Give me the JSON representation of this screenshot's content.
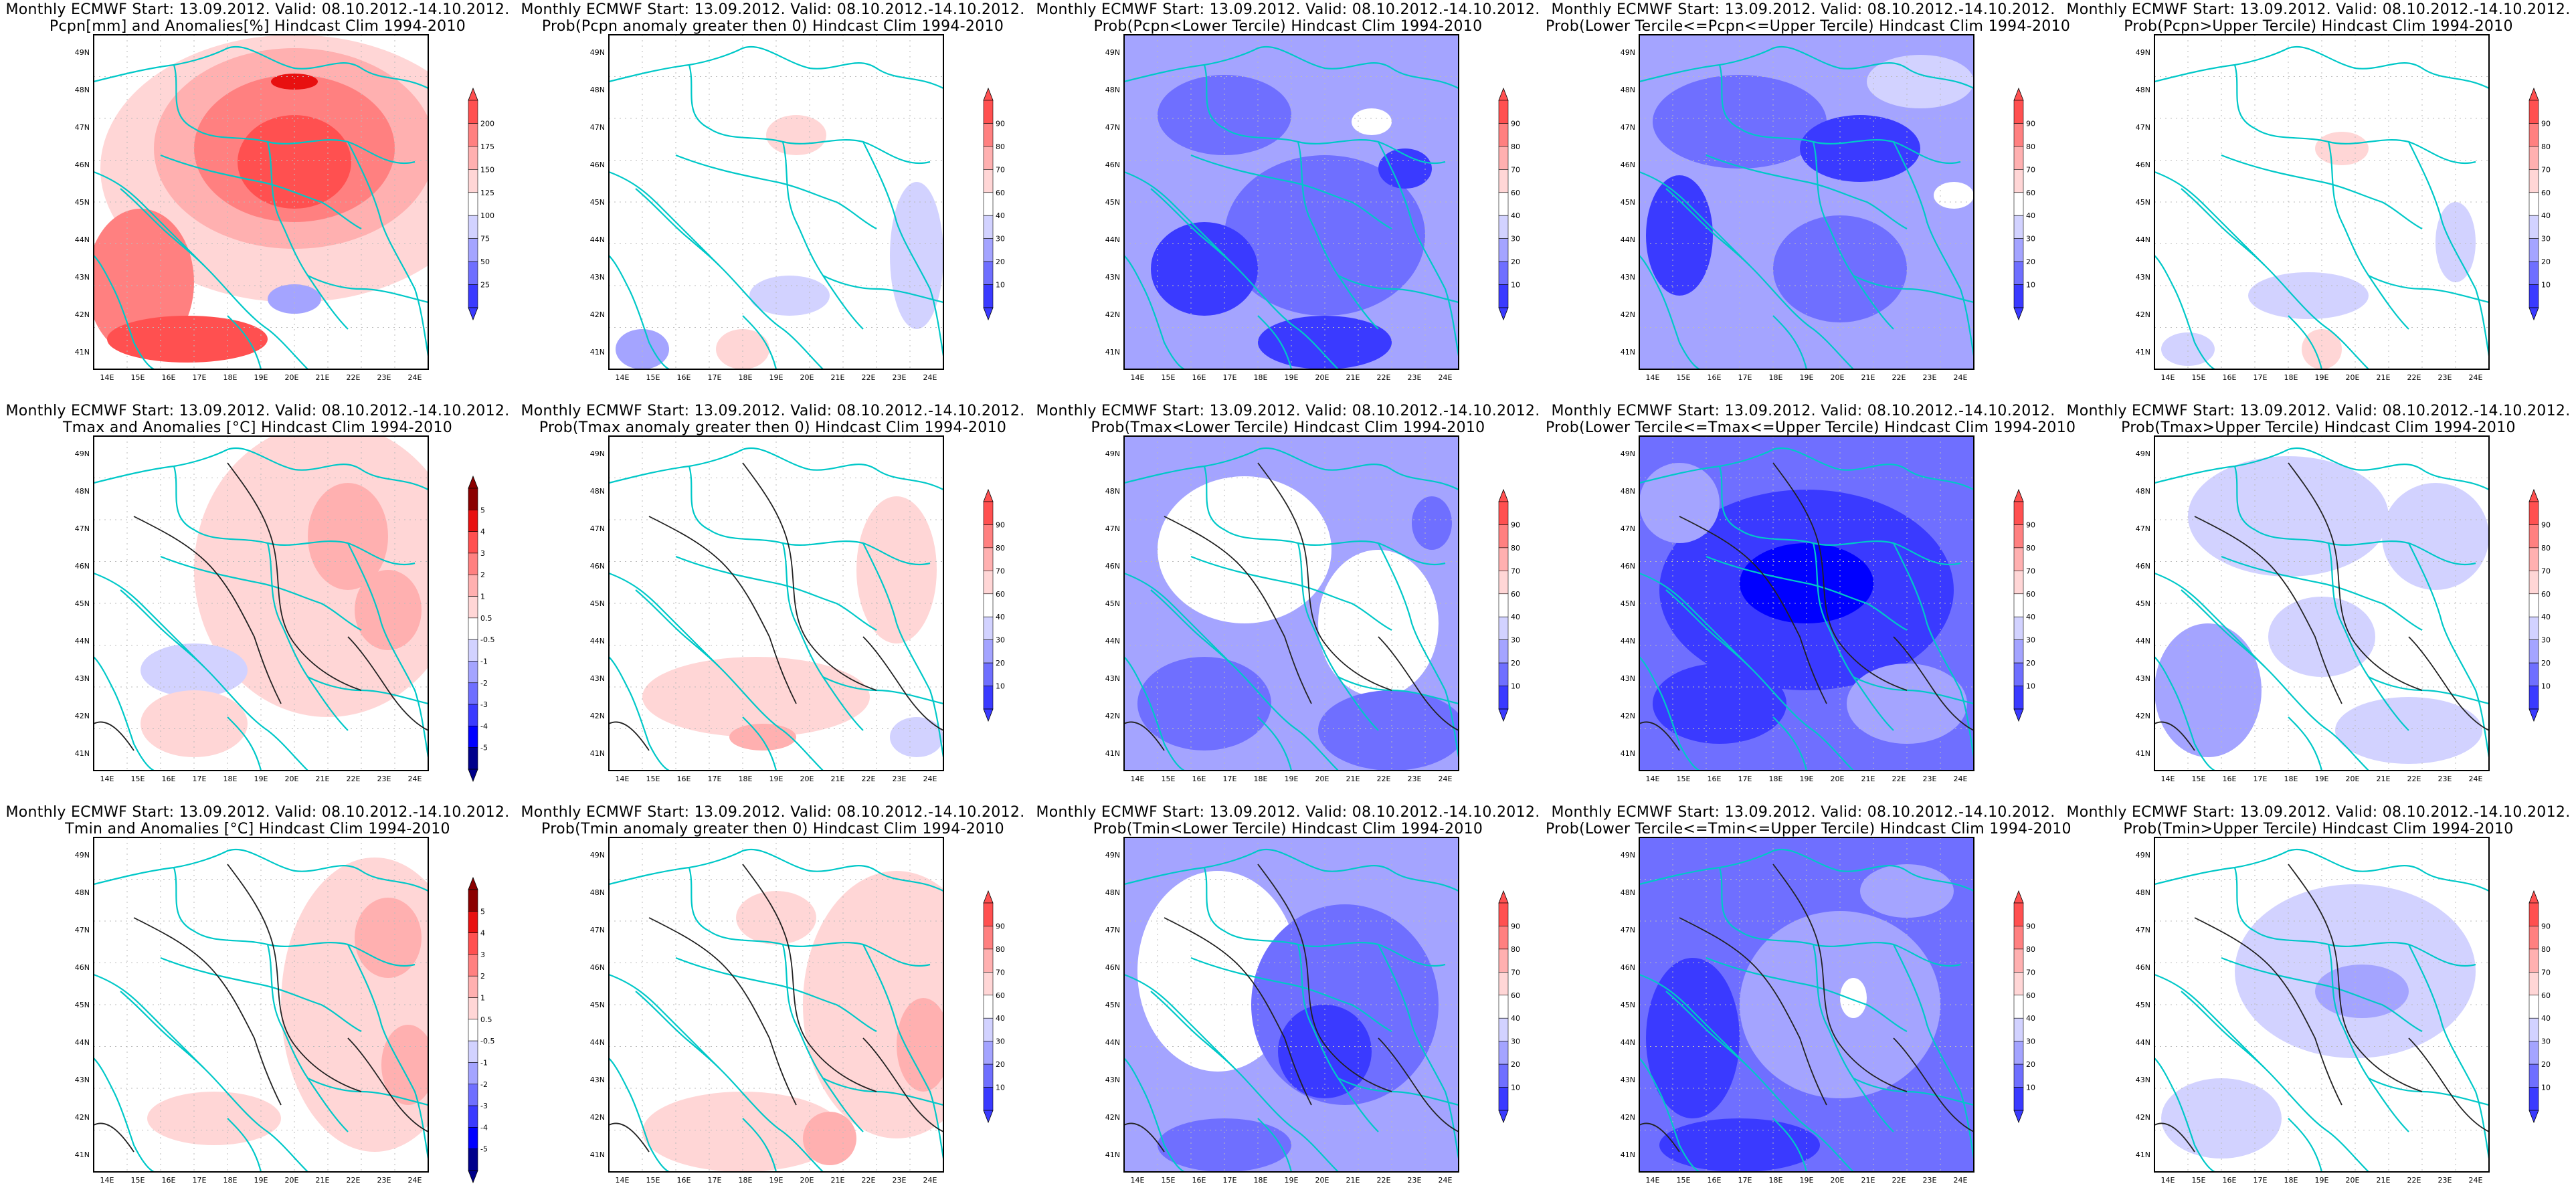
{
  "header_line": "Monthly ECMWF Start: 13.09.2012. Valid: 08.10.2012.-14.10.2012.",
  "lat_labels": [
    "49N",
    "48N",
    "47N",
    "46N",
    "45N",
    "44N",
    "43N",
    "42N",
    "41N"
  ],
  "lon_labels": [
    "14E",
    "15E",
    "16E",
    "17E",
    "18E",
    "19E",
    "20E",
    "21E",
    "22E",
    "23E",
    "24E"
  ],
  "colorbars": {
    "precip": [
      "200",
      "175",
      "150",
      "125",
      "100",
      "75",
      "50",
      "25"
    ],
    "temp": [
      "5",
      "4",
      "3",
      "2",
      "1",
      "0.5",
      "-0.5",
      "-1",
      "-2",
      "-3",
      "-4",
      "-5"
    ],
    "prob": [
      "90",
      "80",
      "70",
      "60",
      "40",
      "30",
      "20",
      "10"
    ]
  },
  "colors": {
    "neg_scale": [
      "#00008b",
      "#0000ff",
      "#3a3aff",
      "#6f6fff",
      "#a4a4ff",
      "#d2d2ff"
    ],
    "pos_scale": [
      "#ffd6d6",
      "#ffb0b0",
      "#ff8080",
      "#ff5050",
      "#e81010",
      "#8b0000"
    ],
    "coastline": "#00c8c8"
  },
  "panels": [
    {
      "title": "Pcpn[mm] and Anomalies[%] Hindcast Clim 1994-2010",
      "cb": "precip",
      "scheme": "precip"
    },
    {
      "title": "Prob(Pcpn anomaly greater then 0) Hindcast Clim 1994-2010",
      "cb": "prob",
      "scheme": "p_small"
    },
    {
      "title": "Prob(Pcpn<Lower Tercile) Hindcast Clim 1994-2010",
      "cb": "prob",
      "scheme": "blue_med"
    },
    {
      "title": "Prob(Lower Tercile<=Pcpn<=Upper Tercile) Hindcast Clim 1994-2010",
      "cb": "prob",
      "scheme": "blue_med2"
    },
    {
      "title": "Prob(Pcpn>Upper Tercile) Hindcast Clim 1994-2010",
      "cb": "prob",
      "scheme": "p_small2"
    },
    {
      "title": "Tmax and Anomalies [°C] Hindcast Clim 1994-2010",
      "cb": "temp",
      "scheme": "t_anom"
    },
    {
      "title": "Prob(Tmax anomaly greater then 0) Hindcast Clim 1994-2010",
      "cb": "prob",
      "scheme": "t_prob"
    },
    {
      "title": "Prob(Tmax<Lower Tercile) Hindcast Clim 1994-2010",
      "cb": "prob",
      "scheme": "blue_light"
    },
    {
      "title": "Prob(Lower Tercile<=Tmax<=Upper Tercile) Hindcast Clim 1994-2010",
      "cb": "prob",
      "scheme": "blue_dark"
    },
    {
      "title": "Prob(Tmax>Upper Tercile) Hindcast Clim 1994-2010",
      "cb": "prob",
      "scheme": "blue_faint"
    },
    {
      "title": "Tmin and Anomalies [°C] Hindcast Clim 1994-2010",
      "cb": "temp",
      "scheme": "tmin_anom"
    },
    {
      "title": "Prob(Tmin anomaly greater then 0) Hindcast Clim 1994-2010",
      "cb": "prob",
      "scheme": "tmin_prob"
    },
    {
      "title": "Prob(Tmin<Lower Tercile) Hindcast Clim 1994-2010",
      "cb": "prob",
      "scheme": "blue_med3"
    },
    {
      "title": "Prob(Lower Tercile<=Tmin<=Upper Tercile) Hindcast Clim 1994-2010",
      "cb": "prob",
      "scheme": "blue_dark2"
    },
    {
      "title": "Prob(Tmin>Upper Tercile) Hindcast Clim 1994-2010",
      "cb": "prob",
      "scheme": "blue_faint2"
    }
  ]
}
